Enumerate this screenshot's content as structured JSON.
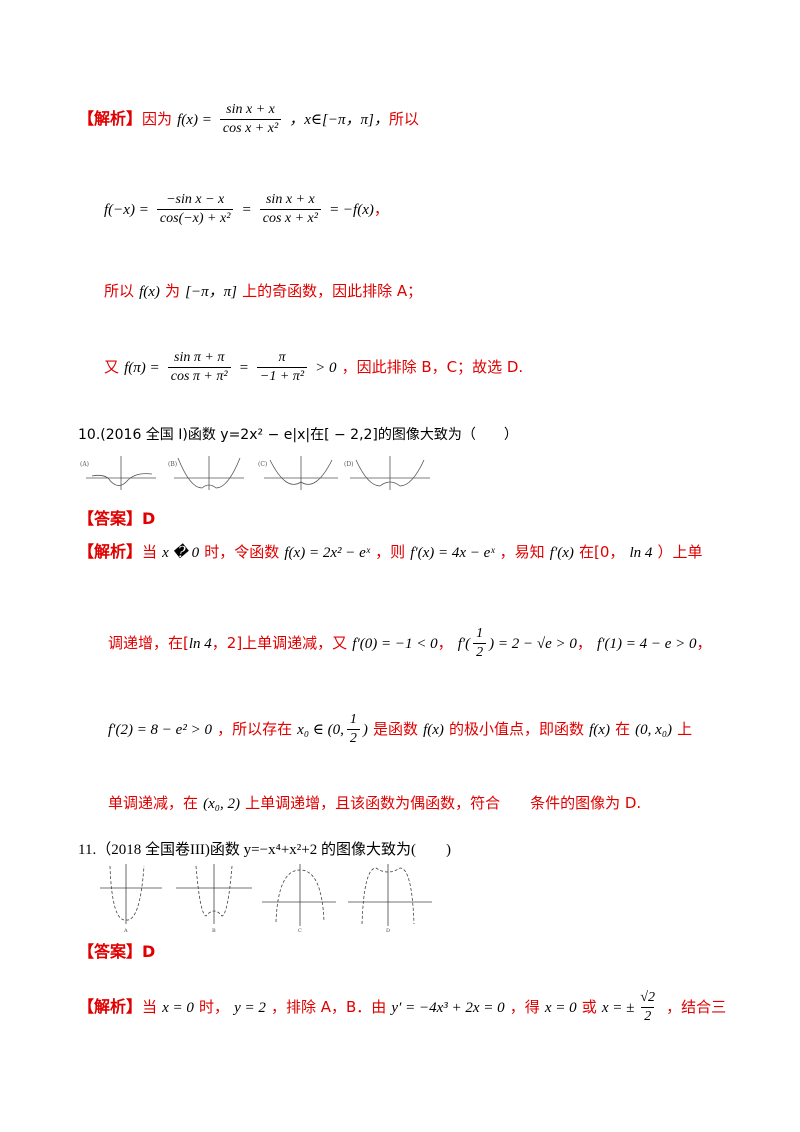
{
  "labels": {
    "analysis": "【解析】",
    "answer": "【答案】"
  },
  "block9": {
    "line1_text": "因为",
    "line1_fx": "f(x) =",
    "line1_num": "sin x + x",
    "line1_den": "cos x + x²",
    "line1_domain": "，x∈[−π，π]，",
    "line1_end": "所以",
    "line2_lhs": "f(−x) =",
    "line2_num1": "−sin x − x",
    "line2_den1": "cos(−x) + x²",
    "line2_num2": "sin x + x",
    "line2_den2": "cos x + x²",
    "line2_rhs": "= −f(x)",
    "line2_end": "，",
    "line3_a": "所以",
    "line3_fx": "f(x)",
    "line3_b": "为",
    "line3_interval": "[−π，π]",
    "line3_c": "上的奇函数，因此排除 A；",
    "line4_a": "又",
    "line4_fx": "f(π) =",
    "line4_num1": "sin π + π",
    "line4_den1": "cos π + π²",
    "line4_num2": "π",
    "line4_den2": "−1 + π²",
    "line4_gt": "> 0",
    "line4_c": "，因此排除 B，C；故选 D."
  },
  "q10": {
    "stem": "10.(2016 全国 I)函数 y=2x² − e|x|在[ − 2,2]的图像大致为（　　）",
    "options": [
      "(A)",
      "(B)",
      "(C)",
      "(D)"
    ],
    "answer": "D",
    "a1": "当",
    "a1_math": "x � 0",
    "a1_b": "时，令函数",
    "a1_f": "f(x) = 2x² − eˣ",
    "a1_c": "，则",
    "a1_fp": "f′(x) = 4x − eˣ",
    "a1_d": "，易知",
    "a1_fp2": "f′(x)",
    "a1_e": "在[0，",
    "a1_ln": "ln 4",
    "a1_f2": "）上单",
    "a2_a": "调递增，在[",
    "a2_ln": "ln 4",
    "a2_b": "，2]上单调递减，又",
    "a2_f0": "f′(0) = −1 < 0",
    "a2_comma1": "，",
    "a2_fh_lhs": "f′(",
    "a2_fh_num": "1",
    "a2_fh_den": "2",
    "a2_fh_rhs": ") = 2 − √e > 0",
    "a2_comma2": "，",
    "a2_f1": "f′(1) = 4 − e > 0",
    "a2_comma3": "，",
    "a3_f2": "f′(2) = 8 − e² > 0",
    "a3_a": "，所以存在",
    "a3_x0": "x₀ ∈ (0,",
    "a3_num": "1",
    "a3_den": "2",
    "a3_close": ")",
    "a3_b": "是函数",
    "a3_fx": "f(x)",
    "a3_c": "的极小值点，即函数",
    "a3_fx2": "f(x)",
    "a3_d": "在",
    "a3_int": "(0, x₀)",
    "a3_e": "上",
    "a4_a": "单调递减，在",
    "a4_int": "(x₀, 2)",
    "a4_b": "上单调递增，且该函数为偶函数，符合　　条件的图像为 D."
  },
  "q11": {
    "stem": "11.（2018 全国卷III)函数 y=−x⁴+x²+2 的图像大致为(　　)",
    "options": [
      "A",
      "B",
      "C",
      "D"
    ],
    "answer": "D",
    "a1": "当",
    "a1_x": "x = 0",
    "a1_b": "时，",
    "a1_y": "y = 2",
    "a1_c": "，排除 A，B．由",
    "a1_yp": "y′ = −4x³ + 2x = 0",
    "a1_d": "，得",
    "a1_x2": "x = 0",
    "a1_e": "或",
    "a1_x3": "x = ±",
    "a1_num": "√2",
    "a1_den": "2",
    "a1_f": "，结合三"
  }
}
